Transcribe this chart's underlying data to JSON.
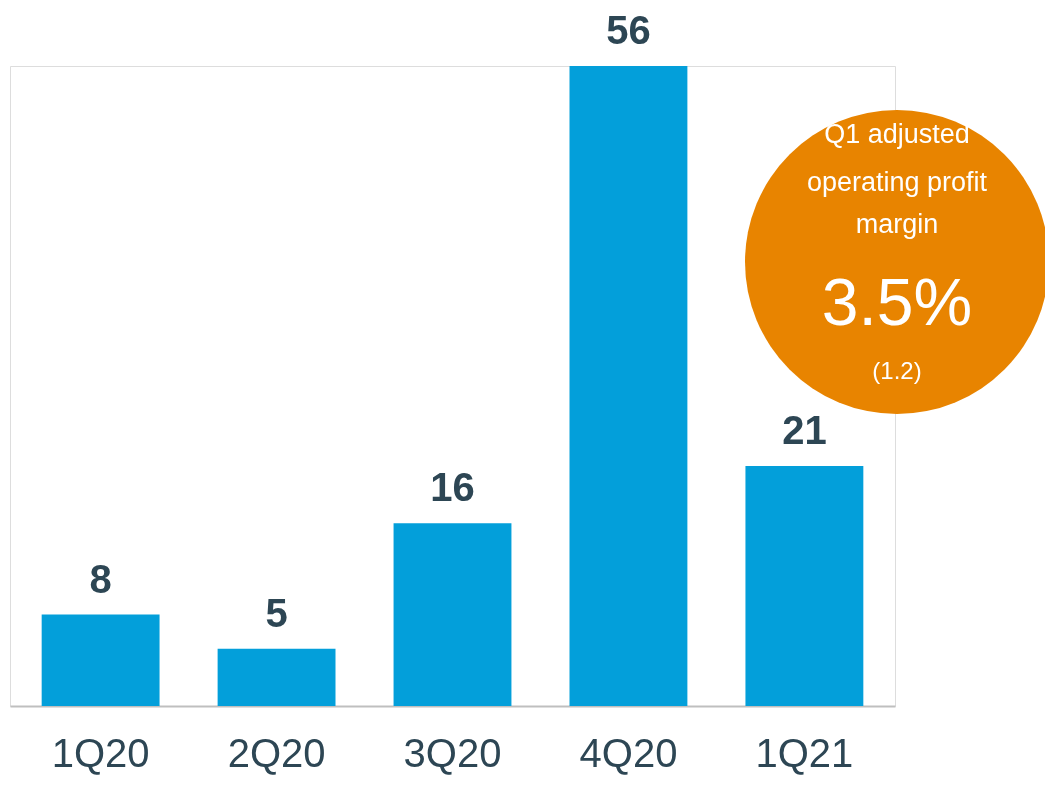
{
  "chart_data": {
    "type": "bar",
    "categories": [
      "1Q20",
      "2Q20",
      "3Q20",
      "4Q20",
      "1Q21"
    ],
    "values": [
      8,
      5,
      16,
      56,
      21
    ],
    "color": "#039fda",
    "data_labels": true,
    "annotations": [
      "Q1 adjusted",
      "operating profit",
      "margin",
      "3.5%",
      "(1.2)"
    ]
  }
}
